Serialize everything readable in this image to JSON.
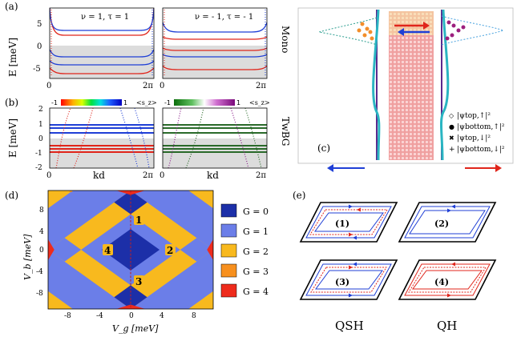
{
  "panels": {
    "a": {
      "label": "(a)",
      "ylabel": "E [meV]",
      "side_label": "Mono",
      "yticks": [
        "5",
        "0",
        "-5"
      ],
      "xticks": [
        "0",
        "2π"
      ],
      "left_title": "ν = 1, τ = 1",
      "right_title": "ν = - 1, τ = - 1"
    },
    "b": {
      "label": "(b)",
      "ylabel": "E [meV]",
      "side_label": "TwBG",
      "xlabel": "kd",
      "yticks": [
        "2",
        "1",
        "0",
        "-1",
        "-2"
      ],
      "xticks": [
        "0",
        "2π"
      ],
      "cbar_left_min": "-1",
      "cbar_left_max": "1",
      "cbar_right_min": "-1",
      "cbar_right_max": "1",
      "cbar_label": "<s_z>"
    },
    "c": {
      "label": "(c)",
      "legend": [
        {
          "marker": "◇",
          "text": "|ψtop,↑|²",
          "color": "#2a9d8f"
        },
        {
          "marker": "●",
          "text": "|ψbottom,↑|²",
          "color": "#f28e2b"
        },
        {
          "marker": "✖",
          "text": "|ψtop,↓|²",
          "color": "#9c1f7e"
        },
        {
          "marker": "+",
          "text": "|ψbottom,↓|²",
          "color": "#4aa3df"
        }
      ]
    },
    "d": {
      "label": "(d)",
      "xlabel": "V_g [meV]",
      "ylabel": "V_b [meV]",
      "xticks": [
        "-8",
        "-4",
        "0",
        "4",
        "8"
      ],
      "yticks": [
        "8",
        "4",
        "0",
        "-4",
        "-8"
      ],
      "region_labels": [
        "1",
        "2",
        "3",
        "4"
      ],
      "legend": [
        {
          "text": "G = 0",
          "color": "#1c2fa8"
        },
        {
          "text": "G = 1",
          "color": "#6b7ee8"
        },
        {
          "text": "G = 2",
          "color": "#f8b91e"
        },
        {
          "text": "G = 3",
          "color": "#f7901e"
        },
        {
          "text": "G = 4",
          "color": "#ee2b1c"
        }
      ]
    },
    "e": {
      "label": "(e)",
      "cells": [
        "(1)",
        "(2)",
        "(3)",
        "(4)"
      ],
      "bottom_labels": [
        "QSH",
        "QH"
      ]
    }
  },
  "colors": {
    "blue": "#1f3fd6",
    "red": "#e0251b",
    "gray": "#dcdcdc",
    "teal": "#2ab5c2",
    "purple": "#5a2a8e"
  }
}
